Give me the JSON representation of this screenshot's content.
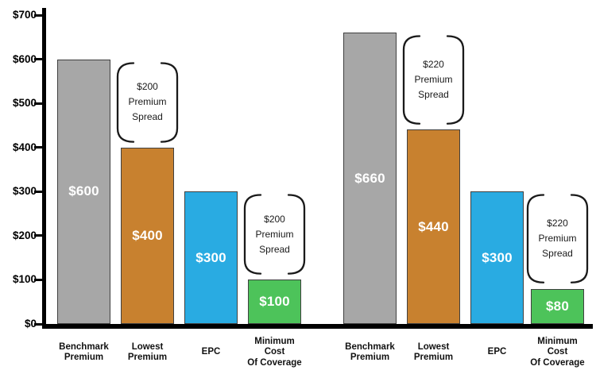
{
  "chart_data": {
    "type": "bar",
    "title": "",
    "xlabel": "",
    "ylabel": "",
    "grid": false,
    "legend": null,
    "y_axis": {
      "ylim": [
        0,
        700
      ],
      "tick_values": [
        700,
        600,
        500,
        400,
        300,
        200,
        100,
        0
      ],
      "tick_labels": [
        "$700",
        "$600",
        "$500",
        "$400",
        "$300",
        "$200",
        "$100",
        "$0"
      ]
    },
    "bars": [
      {
        "group": 1,
        "category_lines": [
          "Benchmark",
          "Premium"
        ],
        "value": 600,
        "value_label": "$600",
        "series": "benchmark"
      },
      {
        "group": 1,
        "category_lines": [
          "Lowest",
          "Premium"
        ],
        "value": 400,
        "value_label": "$400",
        "series": "lowest"
      },
      {
        "group": 1,
        "category_lines": [
          "EPC"
        ],
        "value": 300,
        "value_label": "$300",
        "series": "epc"
      },
      {
        "group": 1,
        "category_lines": [
          "Minimum",
          "Cost",
          "Of Coverage"
        ],
        "value": 100,
        "value_label": "$100",
        "series": "minimum"
      },
      {
        "group": 2,
        "category_lines": [
          "Benchmark",
          "Premium"
        ],
        "value": 660,
        "value_label": "$660",
        "series": "benchmark"
      },
      {
        "group": 2,
        "category_lines": [
          "Lowest",
          "Premium"
        ],
        "value": 440,
        "value_label": "$440",
        "series": "lowest"
      },
      {
        "group": 2,
        "category_lines": [
          "EPC"
        ],
        "value": 300,
        "value_label": "$300",
        "series": "epc"
      },
      {
        "group": 2,
        "category_lines": [
          "Minimum",
          "Cost",
          "Of Coverage"
        ],
        "value": 80,
        "value_label": "$80",
        "series": "minimum"
      }
    ],
    "annotations": [
      {
        "lines": [
          "$200",
          "Premium",
          "Spread"
        ],
        "anchor_bar": 1,
        "top_value": 600,
        "bottom_value": 400
      },
      {
        "lines": [
          "$200",
          "Premium",
          "Spread"
        ],
        "anchor_bar": 3,
        "top_value": 300,
        "bottom_value": 100
      },
      {
        "lines": [
          "$220",
          "Premium",
          "Spread"
        ],
        "anchor_bar": 5,
        "top_value": 660,
        "bottom_value": 440
      },
      {
        "lines": [
          "$220",
          "Premium",
          "Spread"
        ],
        "anchor_bar": 7,
        "top_value": 300,
        "bottom_value": 80
      }
    ],
    "colors": {
      "benchmark": "#A7A7A7",
      "lowest": "#C8812F",
      "epc": "#29ABE2",
      "minimum": "#4DC35A",
      "bar_border": "#404040",
      "axis": "#000000",
      "value_label_text": "#FFFFFF",
      "annotation_text": "#1A1A1A"
    }
  }
}
